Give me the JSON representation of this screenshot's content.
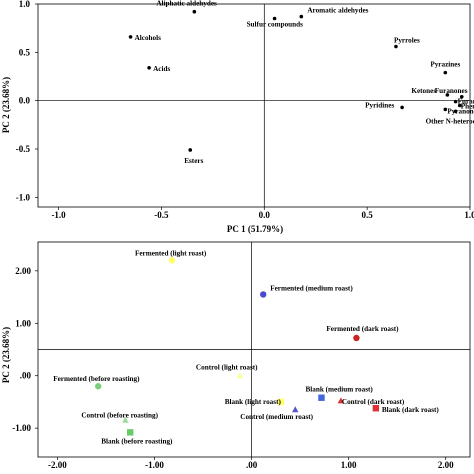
{
  "chart_data": [
    {
      "type": "scatter",
      "title": "",
      "xlabel": "PC 1 (51.79%)",
      "ylabel": "PC 2 (23.68%)",
      "xlim": [
        -1.1,
        1.0
      ],
      "ylim": [
        -1.1,
        1.0
      ],
      "x_ticks": [
        -1.0,
        -0.5,
        0.0,
        0.5,
        1.0
      ],
      "x_tick_labels": [
        "-1.0",
        "-0.5",
        "0.0",
        "0.5",
        "1.0"
      ],
      "y_ticks": [
        -1.0,
        -0.5,
        0.0,
        0.5,
        1.0
      ],
      "y_tick_labels": [
        "-1.0",
        "-0.5",
        "0.0",
        "0.5",
        "1.0"
      ],
      "reference_lines": {
        "x": 0,
        "y": 0
      },
      "points": [
        {
          "label": "Aliphatic aldehydes",
          "x": -0.34,
          "y": 0.92
        },
        {
          "label": "Aromatic aldehydes",
          "x": 0.18,
          "y": 0.87
        },
        {
          "label": "Sulfur compounds",
          "x": 0.05,
          "y": 0.85
        },
        {
          "label": "Alcohols",
          "x": -0.65,
          "y": 0.66
        },
        {
          "label": "Acids",
          "x": -0.56,
          "y": 0.34
        },
        {
          "label": "Pyrroles",
          "x": 0.64,
          "y": 0.56
        },
        {
          "label": "Pyrazines",
          "x": 0.88,
          "y": 0.29
        },
        {
          "label": "Ketones",
          "x": 0.89,
          "y": 0.06
        },
        {
          "label": "Furanones",
          "x": 0.96,
          "y": 0.04
        },
        {
          "label": "Furans",
          "x": 0.93,
          "y": -0.01
        },
        {
          "label": "Phenols",
          "x": 0.95,
          "y": -0.05
        },
        {
          "label": "Pyridines",
          "x": 0.67,
          "y": -0.07
        },
        {
          "label": "Pyranones",
          "x": 0.88,
          "y": -0.09
        },
        {
          "label": "Other N-heterocyclics",
          "x": 0.93,
          "y": -0.11
        },
        {
          "label": "Esters",
          "x": -0.36,
          "y": -0.51
        }
      ]
    },
    {
      "type": "scatter",
      "title": "",
      "xlabel": "",
      "ylabel": "PC 2 (23.68%)",
      "xlim": [
        -2.2,
        2.25
      ],
      "ylim": [
        -1.55,
        2.55
      ],
      "x_ticks": [
        -2.0,
        -1.0,
        0.0,
        1.0,
        2.0
      ],
      "x_tick_labels": [
        "-2.00",
        "-1.00",
        ".00",
        "1.00",
        "2.00"
      ],
      "y_ticks": [
        -1.0,
        0.0,
        1.0,
        2.0
      ],
      "y_tick_labels": [
        "-1.00",
        ".00",
        "1.00",
        "2.00"
      ],
      "reference_lines": {
        "x": 0,
        "y": 0.5
      },
      "points": [
        {
          "label": "Fermented (light roast)",
          "x": -0.82,
          "y": 2.2,
          "color": "#ffff66",
          "marker": "circle"
        },
        {
          "label": "Fermented (medium roast)",
          "x": 0.12,
          "y": 1.55,
          "color": "#4a4ad0",
          "marker": "circle"
        },
        {
          "label": "Fermented (dark roast)",
          "x": 1.08,
          "y": 0.72,
          "color": "#cc2222",
          "marker": "circle"
        },
        {
          "label": "Fermented (before roasting)",
          "x": -1.58,
          "y": -0.2,
          "color": "#7ad07a",
          "marker": "circle"
        },
        {
          "label": "Control (light roast)",
          "x": -0.12,
          "y": 0.0,
          "color": "#ffff99",
          "marker": "triangle"
        },
        {
          "label": "Control (medium roast)",
          "x": 0.45,
          "y": -0.65,
          "color": "#5555cc",
          "marker": "triangle"
        },
        {
          "label": "Control (dark roast)",
          "x": 0.92,
          "y": -0.48,
          "color": "#dd3333",
          "marker": "triangle"
        },
        {
          "label": "Control (before roasting)",
          "x": -1.3,
          "y": -0.85,
          "color": "#99dd99",
          "marker": "triangle"
        },
        {
          "label": "Blank (light roast)",
          "x": 0.3,
          "y": -0.5,
          "color": "#ffff66",
          "marker": "square"
        },
        {
          "label": "Blank (medium roast)",
          "x": 0.72,
          "y": -0.42,
          "color": "#4466dd",
          "marker": "square"
        },
        {
          "label": "Blank (dark roast)",
          "x": 1.28,
          "y": -0.62,
          "color": "#dd3333",
          "marker": "square"
        },
        {
          "label": "Blank (before roasting)",
          "x": -1.25,
          "y": -1.08,
          "color": "#66cc66",
          "marker": "square"
        }
      ]
    }
  ]
}
